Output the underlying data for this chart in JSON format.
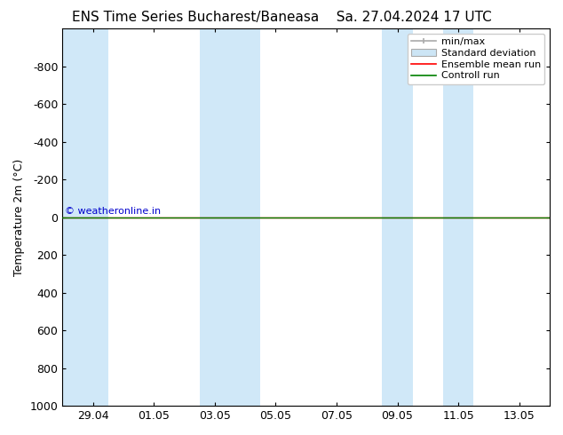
{
  "title_left": "ENS Time Series Bucharest/Baneasa",
  "title_right": "Sa. 27.04.2024 17 UTC",
  "ylabel": "Temperature 2m (°C)",
  "copyright_text": "© weatheronline.in",
  "copyright_color": "#0000cc",
  "ylim_bottom": 1000,
  "ylim_top": -1000,
  "yticks": [
    -800,
    -600,
    -400,
    -200,
    0,
    200,
    400,
    600,
    800,
    1000
  ],
  "x_tick_labels": [
    "29.04",
    "01.05",
    "03.05",
    "05.05",
    "07.05",
    "09.05",
    "11.05",
    "13.05"
  ],
  "x_tick_positions": [
    1,
    3,
    5,
    7,
    9,
    11,
    13,
    15
  ],
  "xlim": [
    0,
    16
  ],
  "background_color": "#ffffff",
  "plot_bg_color": "#ffffff",
  "shaded_columns": [
    {
      "xmin": 0.0,
      "xmax": 1.5,
      "color": "#d6e8f5"
    },
    {
      "xmin": 4.5,
      "xmax": 6.0,
      "color": "#d6e8f5"
    },
    {
      "xmin": 10.5,
      "xmax": 12.0,
      "color": "#d6e8f5"
    },
    {
      "xmin": 11.5,
      "xmax": 13.5,
      "color": "#d6e8f5"
    }
  ],
  "green_line_y": 0,
  "legend_labels": [
    "min/max",
    "Standard deviation",
    "Ensemble mean run",
    "Controll run"
  ],
  "legend_line_color": "#aaaaaa",
  "legend_std_color": "#cce5f5",
  "legend_ens_color": "#ff0000",
  "legend_ctrl_color": "#008000",
  "font_size_title": 11,
  "font_size_axis": 9,
  "font_size_legend": 8,
  "tick_label_fontsize": 9,
  "spine_color": "#000000"
}
